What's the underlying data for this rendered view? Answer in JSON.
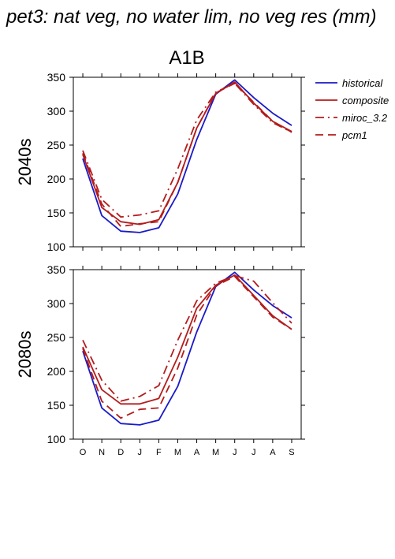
{
  "figure": {
    "title": "pet3: nat veg, no water lim, no veg res (mm)",
    "scenario": "A1B"
  },
  "colors": {
    "historical": "#1a1ac8",
    "projection": "#b41c1c",
    "axis": "#000000"
  },
  "legend": {
    "placement": "right-top",
    "entries": [
      {
        "label": "historical",
        "color": "#1a1ac8",
        "style": "solid"
      },
      {
        "label": "composite",
        "color": "#b41c1c",
        "style": "solid"
      },
      {
        "label": "miroc_3.2",
        "color": "#b41c1c",
        "style": "dash-dot"
      },
      {
        "label": "pcm1",
        "color": "#b41c1c",
        "style": "dash"
      }
    ]
  },
  "chart_data": [
    {
      "type": "line",
      "title": "A1B",
      "ylabel": "2040s",
      "xlabel": "",
      "categories": [
        "O",
        "N",
        "D",
        "J",
        "F",
        "M",
        "A",
        "M",
        "J",
        "J",
        "A",
        "S"
      ],
      "ylim": [
        100,
        350
      ],
      "yticks": [
        100,
        150,
        200,
        250,
        300,
        350
      ],
      "grid": false,
      "series": [
        {
          "name": "historical",
          "style": "solid",
          "color": "#1a1ac8",
          "values": [
            230,
            146,
            123,
            121,
            128,
            178,
            258,
            325,
            346,
            320,
            297,
            279
          ]
        },
        {
          "name": "composite",
          "style": "solid",
          "color": "#b41c1c",
          "values": [
            236,
            158,
            137,
            133,
            140,
            195,
            275,
            326,
            343,
            312,
            285,
            270
          ]
        },
        {
          "name": "miroc_3.2",
          "style": "dash-dot",
          "color": "#b41c1c",
          "values": [
            242,
            170,
            144,
            147,
            153,
            215,
            287,
            328,
            341,
            310,
            283,
            269
          ]
        },
        {
          "name": "pcm1",
          "style": "dash",
          "color": "#b41c1c",
          "values": [
            238,
            163,
            130,
            134,
            137,
            195,
            275,
            327,
            341,
            313,
            285,
            269
          ]
        }
      ]
    },
    {
      "type": "line",
      "title": "",
      "ylabel": "2080s",
      "xlabel": "",
      "categories": [
        "O",
        "N",
        "D",
        "J",
        "F",
        "M",
        "A",
        "M",
        "J",
        "J",
        "A",
        "S"
      ],
      "ylim": [
        100,
        350
      ],
      "yticks": [
        100,
        150,
        200,
        250,
        300,
        350
      ],
      "grid": false,
      "series": [
        {
          "name": "historical",
          "style": "solid",
          "color": "#1a1ac8",
          "values": [
            230,
            146,
            123,
            121,
            128,
            178,
            258,
            325,
            346,
            320,
            297,
            279
          ]
        },
        {
          "name": "composite",
          "style": "solid",
          "color": "#b41c1c",
          "values": [
            236,
            173,
            152,
            152,
            160,
            221,
            293,
            327,
            342,
            312,
            282,
            262
          ]
        },
        {
          "name": "miroc_3.2",
          "style": "dash-dot",
          "color": "#b41c1c",
          "values": [
            246,
            187,
            156,
            163,
            179,
            246,
            304,
            330,
            341,
            333,
            301,
            271
          ]
        },
        {
          "name": "pcm1",
          "style": "dash",
          "color": "#b41c1c",
          "values": [
            234,
            156,
            131,
            144,
            146,
            205,
            283,
            326,
            340,
            310,
            280,
            262
          ]
        }
      ]
    }
  ]
}
